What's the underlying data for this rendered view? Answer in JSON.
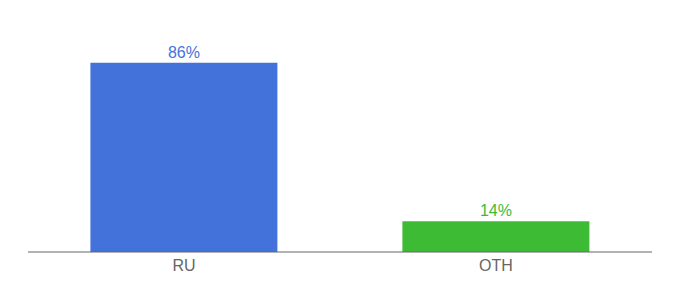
{
  "chart_data": {
    "type": "bar",
    "categories": [
      "RU",
      "OTH"
    ],
    "values": [
      86,
      14
    ],
    "colors": [
      "#4472db",
      "#3dbb35"
    ],
    "value_labels": [
      "86%",
      "14%"
    ],
    "data_labels": true,
    "ylim": [
      0,
      100
    ],
    "tick_labels": "x",
    "grid": false
  }
}
